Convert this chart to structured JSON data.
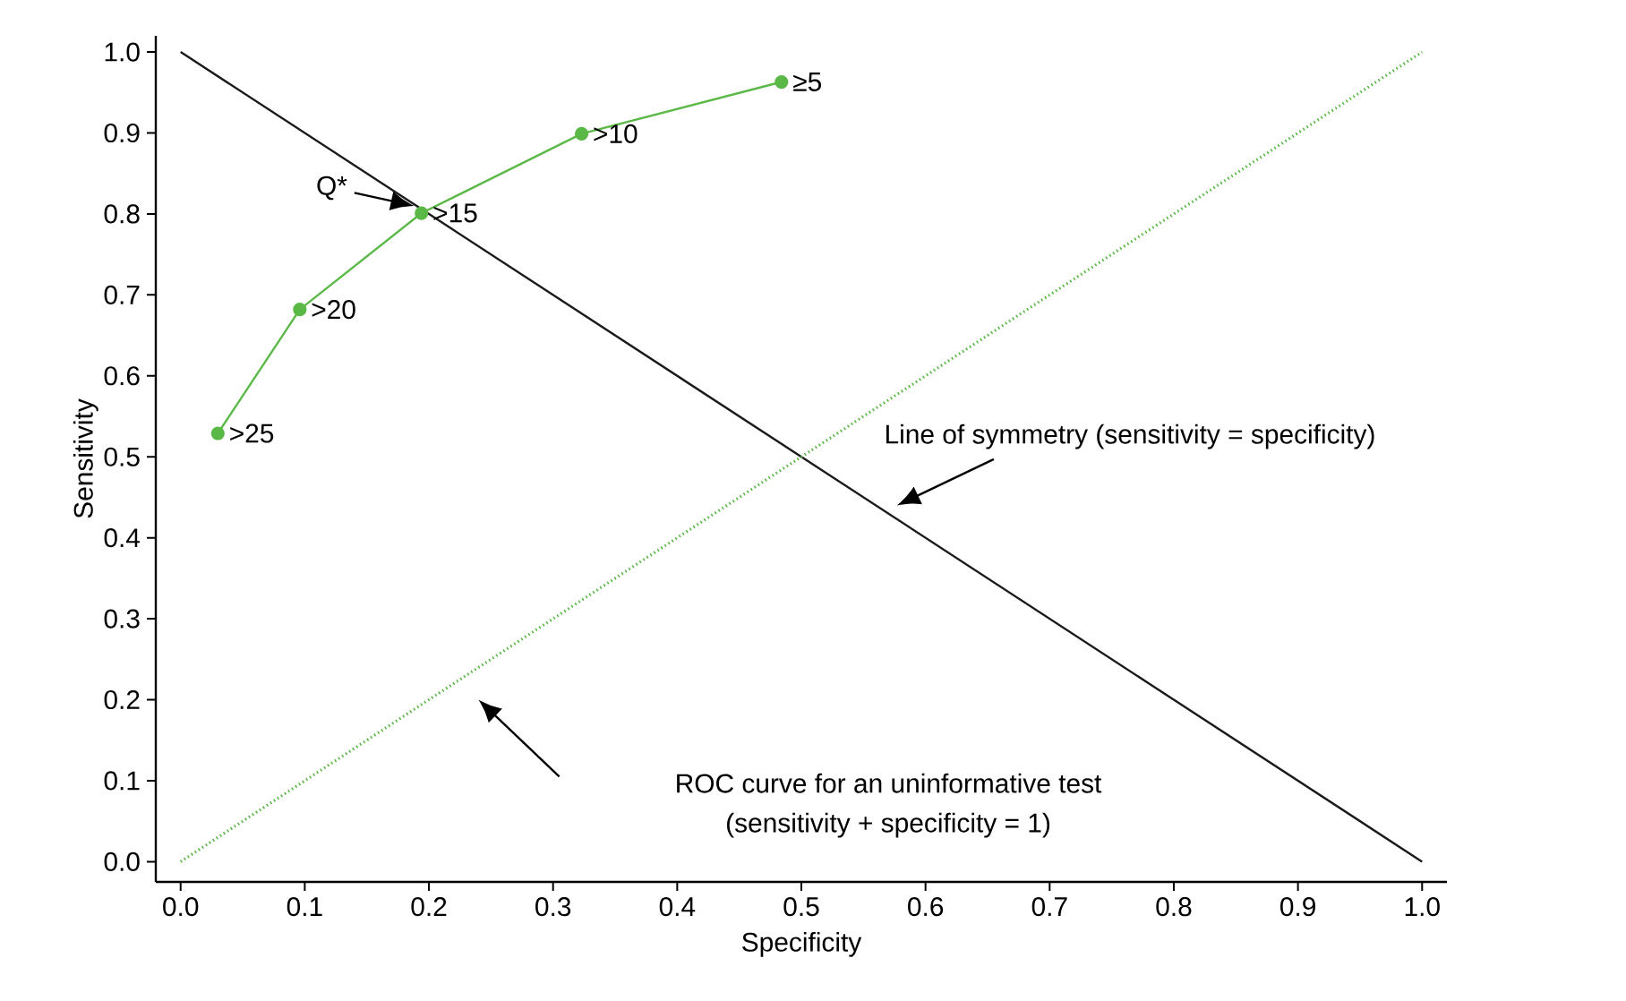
{
  "chart_data": {
    "type": "line",
    "xlabel": "Specificity",
    "ylabel": "Sensitivity",
    "xlim": [
      -0.02,
      1.02
    ],
    "ylim": [
      -0.025,
      1.02
    ],
    "xticks": [
      {
        "value": 0,
        "label": "0.0"
      },
      0.1,
      0.2,
      0.3,
      0.4,
      0.5,
      0.6,
      0.7,
      0.8,
      0.9,
      {
        "value": 1,
        "label": "1.0"
      }
    ],
    "yticks": [
      {
        "value": 0,
        "label": "0.0"
      },
      0.1,
      0.2,
      0.3,
      0.4,
      0.5,
      0.6,
      0.7,
      0.8,
      0.9,
      {
        "value": 1,
        "label": "1.0"
      }
    ],
    "series": [
      {
        "color": "#5ab946",
        "x": [
          0.03,
          0.096,
          0.194,
          0.323,
          0.484
        ],
        "values": [
          0.529,
          0.682,
          0.801,
          0.899,
          0.963
        ],
        "marker": "circle",
        "line_style": "solid"
      },
      {
        "color": "#1a1a1a",
        "x": [
          0,
          1
        ],
        "values": [
          1,
          0
        ],
        "marker": "none",
        "line_style": "solid"
      },
      {
        "color": "#5ab946",
        "x": [
          0,
          1
        ],
        "values": [
          0,
          1
        ],
        "marker": "none",
        "line_style": "dotted"
      }
    ],
    "annotations": [
      {
        "text": ">25",
        "x": 0.03,
        "y": 0.529
      },
      {
        "text": ">20",
        "x": 0.096,
        "y": 0.682
      },
      {
        "text": ">15",
        "x": 0.194,
        "y": 0.801
      },
      {
        "text": ">10",
        "x": 0.323,
        "y": 0.899
      },
      {
        "text": "≥5",
        "x": 0.484,
        "y": 0.963
      },
      {
        "text": "Q*",
        "x": 0.188,
        "y": 0.81
      },
      "Line of symmetry (sensitivity = specificity)",
      "ROC curve for an uninformative test",
      "(sensitivity + specificity = 1)"
    ],
    "grid": false
  }
}
